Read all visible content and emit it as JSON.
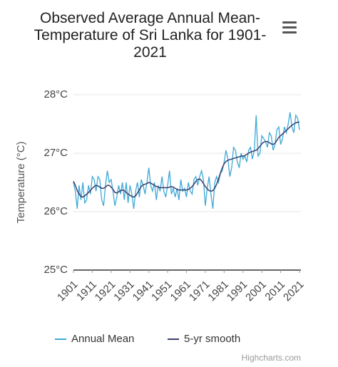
{
  "chart_data": {
    "type": "line",
    "title": "Observed Average Annual Mean-Temperature of Sri Lanka for 1901-2021",
    "y_label": "Temperature (°C)",
    "credits": "Highcharts.com",
    "x": [
      1901,
      1902,
      1903,
      1904,
      1905,
      1906,
      1907,
      1908,
      1909,
      1910,
      1911,
      1912,
      1913,
      1914,
      1915,
      1916,
      1917,
      1918,
      1919,
      1920,
      1921,
      1922,
      1923,
      1924,
      1925,
      1926,
      1927,
      1928,
      1929,
      1930,
      1931,
      1932,
      1933,
      1934,
      1935,
      1936,
      1937,
      1938,
      1939,
      1940,
      1941,
      1942,
      1943,
      1944,
      1945,
      1946,
      1947,
      1948,
      1949,
      1950,
      1951,
      1952,
      1953,
      1954,
      1955,
      1956,
      1957,
      1958,
      1959,
      1960,
      1961,
      1962,
      1963,
      1964,
      1965,
      1966,
      1967,
      1968,
      1969,
      1970,
      1971,
      1972,
      1973,
      1974,
      1975,
      1976,
      1977,
      1978,
      1979,
      1980,
      1981,
      1982,
      1983,
      1984,
      1985,
      1986,
      1987,
      1988,
      1989,
      1990,
      1991,
      1992,
      1993,
      1994,
      1995,
      1996,
      1997,
      1998,
      1999,
      2000,
      2001,
      2002,
      2003,
      2004,
      2005,
      2006,
      2007,
      2008,
      2009,
      2010,
      2011,
      2012,
      2013,
      2014,
      2015,
      2016,
      2017,
      2018,
      2019,
      2020,
      2021
    ],
    "series": [
      {
        "name": "Annual Mean",
        "color": "#3fa9d6",
        "values": [
          26.5,
          26.35,
          26.05,
          26.45,
          26.2,
          26.5,
          26.15,
          26.2,
          26.45,
          26.3,
          26.6,
          26.55,
          26.35,
          26.6,
          26.55,
          26.2,
          26.1,
          26.45,
          26.7,
          26.5,
          26.55,
          26.35,
          26.1,
          26.25,
          26.45,
          26.3,
          26.5,
          26.2,
          26.5,
          26.15,
          26.45,
          26.3,
          26.05,
          26.35,
          26.5,
          26.25,
          26.55,
          26.45,
          26.3,
          26.5,
          26.75,
          26.45,
          26.35,
          26.5,
          26.2,
          26.45,
          26.35,
          26.6,
          26.35,
          26.25,
          26.45,
          26.7,
          26.3,
          26.4,
          26.25,
          26.4,
          26.2,
          26.55,
          26.35,
          26.4,
          26.25,
          26.5,
          26.35,
          26.3,
          26.55,
          26.6,
          26.45,
          26.6,
          26.7,
          26.55,
          26.1,
          26.4,
          26.6,
          26.3,
          26.05,
          26.5,
          26.6,
          26.5,
          26.65,
          26.7,
          26.85,
          27.05,
          26.9,
          26.6,
          26.75,
          27.1,
          27.05,
          26.85,
          26.75,
          27.0,
          26.9,
          26.95,
          26.85,
          27.05,
          27.1,
          26.9,
          27.05,
          27.65,
          26.95,
          27.0,
          27.3,
          27.25,
          27.2,
          27.1,
          27.35,
          27.3,
          27.05,
          27.15,
          27.4,
          27.45,
          27.15,
          27.25,
          27.45,
          27.35,
          27.5,
          27.7,
          27.45,
          27.35,
          27.65,
          27.6,
          27.4
        ]
      },
      {
        "name": "5-yr smooth",
        "color": "#3b3f6e",
        "values": [
          26.52,
          26.45,
          26.36,
          26.3,
          26.26,
          26.25,
          26.27,
          26.3,
          26.33,
          26.36,
          26.4,
          26.43,
          26.45,
          26.44,
          26.42,
          26.4,
          26.4,
          26.42,
          26.45,
          26.45,
          26.42,
          26.38,
          26.33,
          26.32,
          26.34,
          26.36,
          26.37,
          26.36,
          26.33,
          26.3,
          26.28,
          26.26,
          26.25,
          26.27,
          26.32,
          26.38,
          26.43,
          26.46,
          26.47,
          26.48,
          26.5,
          26.49,
          26.47,
          26.45,
          26.43,
          26.42,
          26.41,
          26.41,
          26.41,
          26.41,
          26.41,
          26.42,
          26.43,
          26.42,
          26.4,
          26.38,
          26.37,
          26.37,
          26.37,
          26.37,
          26.37,
          26.38,
          26.4,
          26.43,
          26.47,
          26.52,
          26.55,
          26.56,
          26.53,
          26.48,
          26.43,
          26.39,
          26.36,
          26.35,
          26.36,
          26.4,
          26.47,
          26.56,
          26.66,
          26.75,
          26.82,
          26.86,
          26.88,
          26.89,
          26.9,
          26.91,
          26.92,
          26.93,
          26.94,
          26.95,
          26.95,
          26.96,
          26.98,
          27.0,
          27.02,
          27.03,
          27.04,
          27.05,
          27.08,
          27.12,
          27.16,
          27.19,
          27.2,
          27.2,
          27.18,
          27.16,
          27.15,
          27.17,
          27.22,
          27.27,
          27.3,
          27.33,
          27.36,
          27.39,
          27.42,
          27.45,
          27.48,
          27.5,
          27.52,
          27.53,
          27.53
        ]
      }
    ],
    "xlim": [
      1901,
      2021
    ],
    "xticks": [
      1901,
      1911,
      1921,
      1931,
      1941,
      1951,
      1961,
      1971,
      1981,
      1991,
      2001,
      2011,
      2021
    ],
    "ylim": [
      25,
      28
    ],
    "yticks": [
      {
        "value": 25,
        "label": "25°C"
      },
      {
        "value": 26,
        "label": "26°C"
      },
      {
        "value": 27,
        "label": "27°C"
      },
      {
        "value": 28,
        "label": "28°C"
      }
    ],
    "grid": true,
    "legend": "bottom"
  }
}
